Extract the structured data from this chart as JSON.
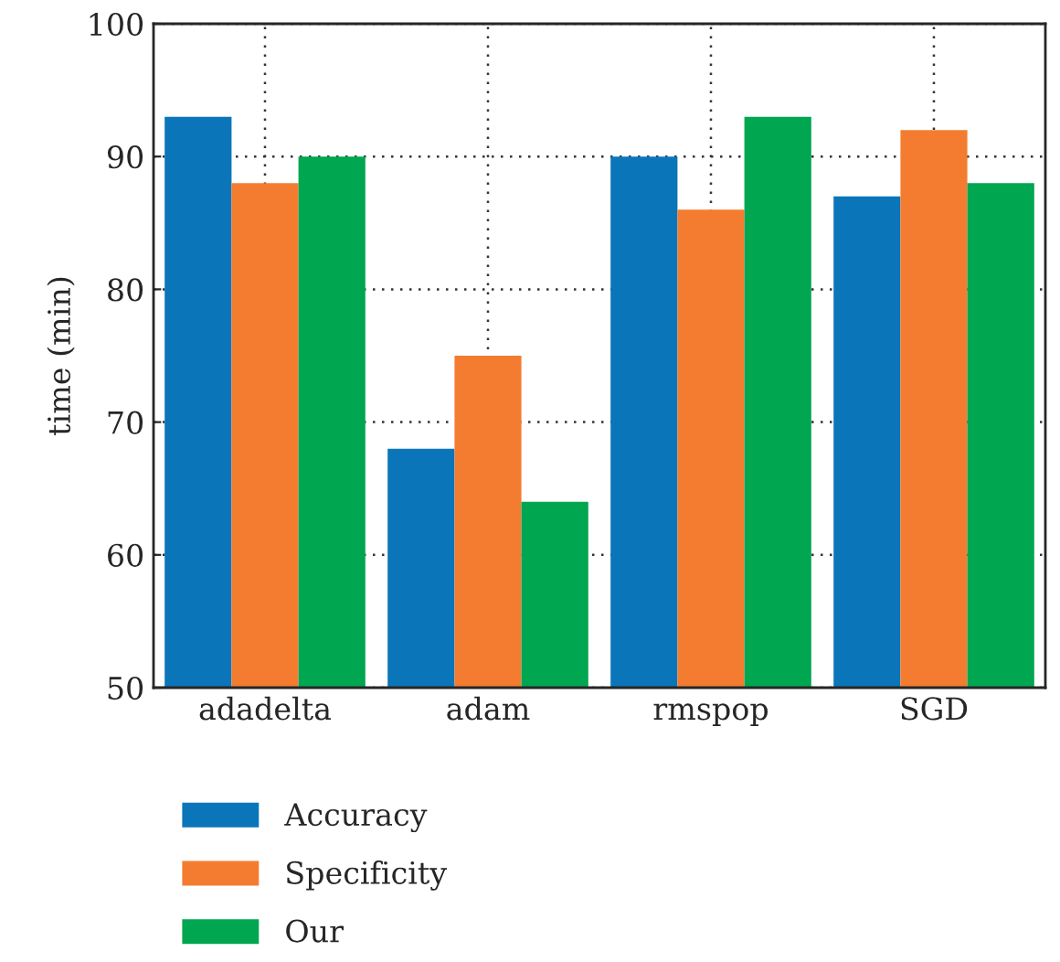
{
  "chart_data": {
    "type": "bar",
    "ylabel": "time (min)",
    "categories": [
      "adadelta",
      "adam",
      "rmspop",
      "SGD"
    ],
    "series": [
      {
        "name": "Accuracy",
        "color": "#0b75b9",
        "values": [
          93,
          68,
          90,
          87
        ]
      },
      {
        "name": "Specificity",
        "color": "#f47c30",
        "values": [
          88,
          75,
          86,
          92
        ]
      },
      {
        "name": "Our",
        "color": "#00a650",
        "values": [
          90,
          64,
          93,
          88
        ]
      }
    ],
    "ylim": [
      50,
      100
    ],
    "yticks": [
      50,
      60,
      70,
      80,
      90,
      100
    ],
    "grid": true,
    "legend": "bottom"
  }
}
